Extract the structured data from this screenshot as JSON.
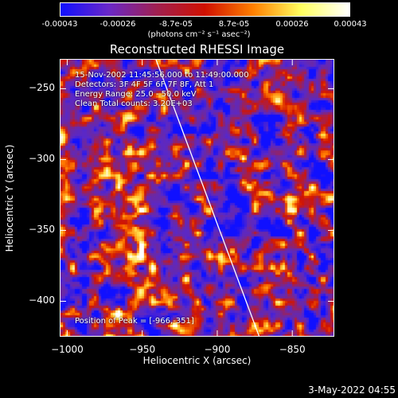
{
  "colorbar": {
    "ticks": [
      "-0.00043",
      "-0.00026",
      "-8.7e-05",
      "8.7e-05",
      "0.00026",
      "0.00043"
    ],
    "unit_label": "(photons cm⁻² s⁻¹ asec⁻²)",
    "colors": [
      "#1010ff",
      "#6a28c8",
      "#a02050",
      "#d01000",
      "#ff8000",
      "#ffff60",
      "#ffffff"
    ]
  },
  "title": "Reconstructed RHESSI Image",
  "info_lines": [
    "15-Nov-2002 11:45:56.000 to 11:49:00.000",
    "Detectors: 3F 4F 5F 6F 7F 8F, Att 1",
    "Energy Range: 25.0 - 50.0 keV",
    "Clean     Total counts: 3.20E+03"
  ],
  "peak_text": "Position of Peak = [-966,-351]",
  "xlabel": "Heliocentric X (arcsec)",
  "ylabel": "Heliocentric Y (arcsec)",
  "xticks": [
    "-1000",
    "-950",
    "-900",
    "-850"
  ],
  "yticks": [
    "-250",
    "-300",
    "-350",
    "-400"
  ],
  "footer_date": "3-May-2022 04:55",
  "chart_data": {
    "type": "heatmap",
    "xlim": [
      -1005,
      -822
    ],
    "ylim": [
      -425,
      -229
    ],
    "limb_line": [
      [
        -941,
        -229
      ],
      [
        -872,
        -425
      ]
    ],
    "peak": [
      -966,
      -351
    ]
  }
}
